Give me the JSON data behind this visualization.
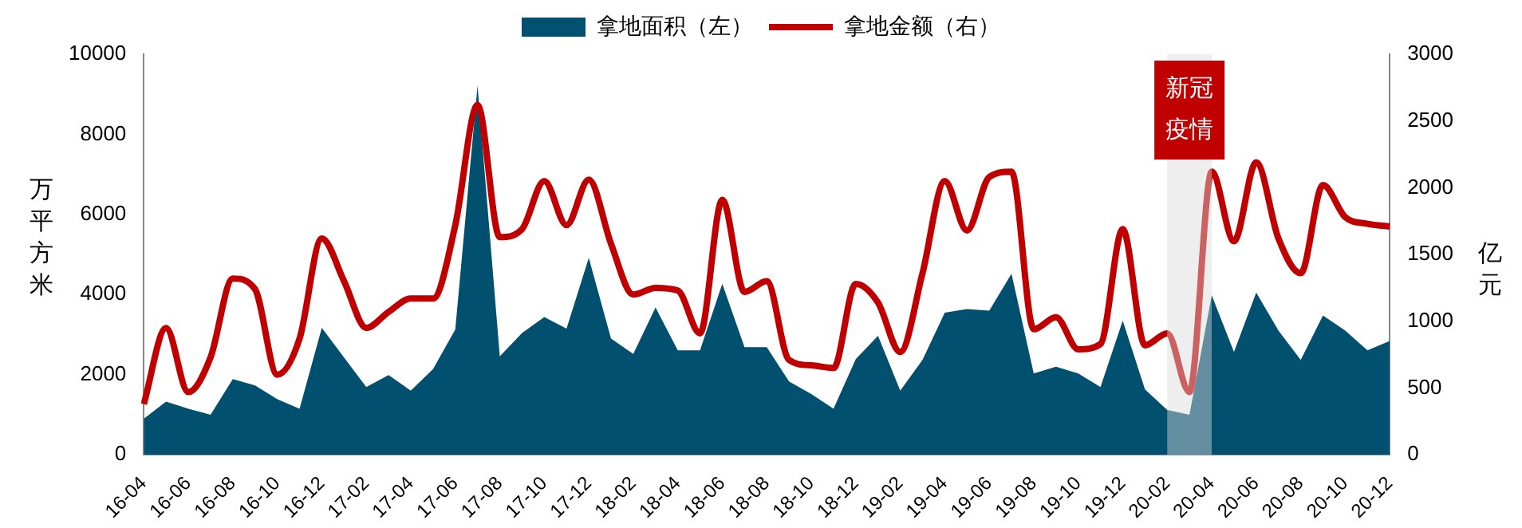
{
  "chart_data": {
    "type": "area",
    "categories": [
      "16-04",
      null,
      "16-06",
      null,
      "16-08",
      null,
      "16-10",
      null,
      "16-12",
      null,
      "17-02",
      null,
      "17-04",
      null,
      "17-06",
      null,
      "17-08",
      null,
      "17-10",
      null,
      "17-12",
      null,
      "18-02",
      null,
      "18-04",
      null,
      "18-06",
      null,
      "18-08",
      null,
      "18-10",
      null,
      "18-12",
      null,
      "19-02",
      null,
      "19-04",
      null,
      "19-06",
      null,
      "19-08",
      null,
      "19-10",
      null,
      "19-12",
      null,
      "20-02",
      null,
      "20-04",
      null,
      "20-06",
      null,
      "20-08",
      null,
      "20-10",
      null,
      "20-12"
    ],
    "series": [
      {
        "name": "拿地面积（左）",
        "color": "#02506f",
        "values": [
          900,
          1330,
          1150,
          1000,
          1890,
          1730,
          1390,
          1150,
          3170,
          2430,
          1690,
          1990,
          1600,
          2140,
          3130,
          9220,
          2460,
          3040,
          3440,
          3150,
          4920,
          2900,
          2520,
          3680,
          2610,
          2610,
          4270,
          2690,
          2690,
          1830,
          1520,
          1150,
          2390,
          2970,
          1600,
          2370,
          3550,
          3640,
          3600,
          4520,
          2030,
          2200,
          2030,
          1690,
          3350,
          1630,
          1120,
          1000,
          3980,
          2570,
          4050,
          3100,
          2370,
          3480,
          3100,
          2610,
          2840
        ]
      },
      {
        "name": "拿地金额（右）",
        "type": "line",
        "axis": "y2",
        "color": "#c00000",
        "values": [
          380,
          950,
          470,
          730,
          1320,
          1240,
          600,
          870,
          1620,
          1300,
          950,
          1070,
          1170,
          1170,
          1720,
          2620,
          1630,
          1690,
          2050,
          1720,
          2060,
          1580,
          1200,
          1250,
          1230,
          910,
          1910,
          1220,
          1300,
          710,
          670,
          650,
          1280,
          1140,
          770,
          1360,
          2050,
          1680,
          2080,
          2120,
          940,
          1030,
          790,
          830,
          1690,
          820,
          910,
          470,
          2120,
          1600,
          2190,
          1620,
          1360,
          2020,
          1780,
          1730,
          1710
        ]
      }
    ],
    "ylabel": "万平方米",
    "y2label": "亿元",
    "ylim": [
      0,
      10000
    ],
    "yticks": [
      0,
      2000,
      4000,
      6000,
      8000,
      10000
    ],
    "y2lim": [
      0,
      3000
    ],
    "y2ticks": [
      0,
      500,
      1000,
      1500,
      2000,
      2500,
      3000
    ],
    "bands": [
      {
        "axis": "x",
        "from": "20-02",
        "to": "20-04",
        "label": "新冠疫情",
        "color": "#d9d9d9"
      }
    ],
    "legend": "top",
    "grid": false
  }
}
